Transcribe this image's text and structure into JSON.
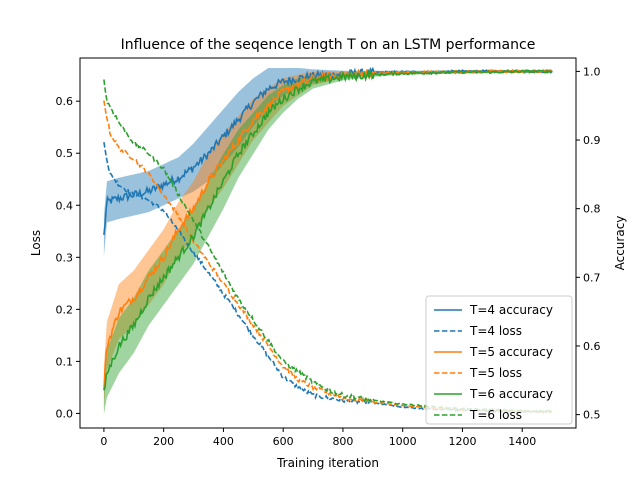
{
  "chart_data": {
    "type": "line",
    "title": "Influence of the seqence length T on an LSTM performance",
    "xlabel": "Training iteration",
    "ylabel": "Loss",
    "ylabel_right": "Accuracy",
    "xlim": [
      -80,
      1580
    ],
    "ylim": [
      -0.028,
      0.683
    ],
    "ylim_right": [
      0.4805,
      1.0195
    ],
    "xticks": [
      0,
      200,
      400,
      600,
      800,
      1000,
      1200,
      1400
    ],
    "yticks": [
      0.0,
      0.1,
      0.2,
      0.3,
      0.4,
      0.5,
      0.6
    ],
    "yticks_right": [
      0.5,
      0.6,
      0.7,
      0.8,
      0.9,
      1.0
    ],
    "grid": false,
    "legend_position": "lower-right",
    "colors": {
      "T4": "#1f77b4",
      "T5": "#ff7f0e",
      "T6": "#2ca02c"
    },
    "series": [
      {
        "name": "T=4 accuracy",
        "color": "#1f77b4",
        "style": "solid",
        "axis": "right",
        "band": true,
        "x": [
          0,
          10,
          50,
          100,
          150,
          200,
          250,
          300,
          350,
          400,
          450,
          500,
          550,
          600,
          650,
          700,
          800,
          900,
          1000,
          1100,
          1200,
          1300,
          1400,
          1500
        ],
        "y": [
          0.76,
          0.81,
          0.815,
          0.82,
          0.825,
          0.835,
          0.845,
          0.86,
          0.88,
          0.905,
          0.93,
          0.955,
          0.975,
          0.985,
          0.99,
          0.993,
          0.996,
          0.998,
          0.999,
          0.999,
          1.0,
          1.0,
          1.0,
          1.0
        ],
        "band_width": [
          0.03,
          0.03,
          0.03,
          0.03,
          0.03,
          0.03,
          0.03,
          0.035,
          0.04,
          0.04,
          0.04,
          0.035,
          0.03,
          0.02,
          0.015,
          0.01,
          0.005,
          0.003,
          0.002,
          0.002,
          0.002,
          0.002,
          0.002,
          0.002
        ]
      },
      {
        "name": "T=4 loss",
        "color": "#1f77b4",
        "style": "dashed",
        "axis": "left",
        "x": [
          0,
          20,
          50,
          100,
          150,
          200,
          250,
          300,
          350,
          400,
          450,
          500,
          550,
          600,
          650,
          700,
          750,
          800,
          900,
          1000,
          1100,
          1200,
          1300,
          1400,
          1500
        ],
        "y": [
          0.52,
          0.46,
          0.44,
          0.42,
          0.41,
          0.39,
          0.35,
          0.31,
          0.27,
          0.23,
          0.19,
          0.15,
          0.11,
          0.07,
          0.05,
          0.035,
          0.03,
          0.025,
          0.02,
          0.012,
          0.008,
          0.006,
          0.004,
          0.003,
          0.003
        ]
      },
      {
        "name": "T=5 accuracy",
        "color": "#ff7f0e",
        "style": "solid",
        "axis": "right",
        "band": true,
        "x": [
          0,
          10,
          50,
          100,
          150,
          200,
          250,
          300,
          350,
          400,
          450,
          500,
          550,
          600,
          650,
          700,
          800,
          900,
          1000,
          1100,
          1200,
          1300,
          1400,
          1500
        ],
        "y": [
          0.54,
          0.6,
          0.65,
          0.67,
          0.7,
          0.73,
          0.77,
          0.8,
          0.84,
          0.87,
          0.9,
          0.93,
          0.95,
          0.97,
          0.98,
          0.99,
          0.995,
          0.997,
          0.998,
          0.999,
          0.999,
          1.0,
          1.0,
          1.0
        ],
        "band_width": [
          0.03,
          0.035,
          0.04,
          0.04,
          0.04,
          0.04,
          0.04,
          0.04,
          0.04,
          0.04,
          0.035,
          0.03,
          0.025,
          0.02,
          0.015,
          0.01,
          0.005,
          0.003,
          0.002,
          0.002,
          0.002,
          0.002,
          0.002,
          0.002
        ]
      },
      {
        "name": "T=5 loss",
        "color": "#ff7f0e",
        "style": "dashed",
        "axis": "left",
        "x": [
          0,
          20,
          50,
          100,
          150,
          200,
          250,
          300,
          350,
          400,
          450,
          500,
          550,
          600,
          650,
          700,
          750,
          800,
          900,
          1000,
          1100,
          1200,
          1300,
          1400,
          1500
        ],
        "y": [
          0.6,
          0.54,
          0.51,
          0.49,
          0.46,
          0.42,
          0.38,
          0.33,
          0.29,
          0.25,
          0.21,
          0.17,
          0.13,
          0.09,
          0.065,
          0.05,
          0.04,
          0.03,
          0.022,
          0.015,
          0.01,
          0.007,
          0.005,
          0.004,
          0.003
        ]
      },
      {
        "name": "T=6 accuracy",
        "color": "#2ca02c",
        "style": "solid",
        "axis": "right",
        "band": true,
        "x": [
          0,
          10,
          50,
          100,
          150,
          200,
          250,
          300,
          350,
          400,
          450,
          500,
          550,
          600,
          650,
          700,
          800,
          900,
          1000,
          1100,
          1200,
          1300,
          1400,
          1500
        ],
        "y": [
          0.53,
          0.56,
          0.6,
          0.63,
          0.67,
          0.7,
          0.73,
          0.76,
          0.8,
          0.84,
          0.88,
          0.91,
          0.94,
          0.96,
          0.975,
          0.985,
          0.992,
          0.995,
          0.997,
          0.998,
          0.999,
          0.999,
          1.0,
          1.0
        ],
        "band_width": [
          0.03,
          0.035,
          0.04,
          0.04,
          0.04,
          0.04,
          0.04,
          0.04,
          0.04,
          0.04,
          0.035,
          0.03,
          0.025,
          0.02,
          0.015,
          0.01,
          0.005,
          0.003,
          0.002,
          0.002,
          0.002,
          0.002,
          0.002,
          0.002
        ]
      },
      {
        "name": "T=6 loss",
        "color": "#2ca02c",
        "style": "dashed",
        "axis": "left",
        "x": [
          0,
          10,
          30,
          60,
          100,
          150,
          200,
          250,
          300,
          350,
          400,
          450,
          500,
          550,
          600,
          650,
          700,
          750,
          800,
          900,
          1000,
          1100,
          1200,
          1300,
          1400,
          1500
        ],
        "y": [
          0.64,
          0.6,
          0.58,
          0.55,
          0.52,
          0.5,
          0.47,
          0.42,
          0.37,
          0.32,
          0.27,
          0.22,
          0.18,
          0.14,
          0.1,
          0.08,
          0.06,
          0.045,
          0.035,
          0.025,
          0.018,
          0.013,
          0.009,
          0.007,
          0.005,
          0.004
        ]
      }
    ]
  }
}
